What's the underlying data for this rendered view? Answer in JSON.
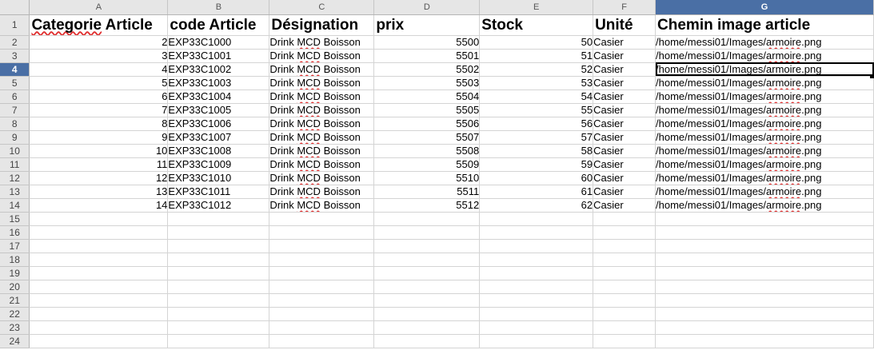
{
  "columns": [
    "A",
    "B",
    "C",
    "D",
    "E",
    "F",
    "G"
  ],
  "active_column": "G",
  "active_row": 4,
  "header_row": {
    "A": "Categorie Article",
    "B": "code Article",
    "C": "Désignation",
    "D": "prix",
    "E": "Stock",
    "F": "Unité",
    "G": "Chemin image  article"
  },
  "data_rows": [
    {
      "row": 2,
      "A": "2",
      "B": "EXP33C1000",
      "C": "Drink MCD Boisson",
      "D": "5500",
      "E": "50",
      "F": "Casier",
      "G": "/home/messi01/Images/armoire.png"
    },
    {
      "row": 3,
      "A": "3",
      "B": "EXP33C1001",
      "C": "Drink MCD Boisson",
      "D": "5501",
      "E": "51",
      "F": "Casier",
      "G": "/home/messi01/Images/armoire.png"
    },
    {
      "row": 4,
      "A": "4",
      "B": "EXP33C1002",
      "C": "Drink MCD Boisson",
      "D": "5502",
      "E": "52",
      "F": "Casier",
      "G": "/home/messi01/Images/armoire.png"
    },
    {
      "row": 5,
      "A": "5",
      "B": "EXP33C1003",
      "C": "Drink MCD Boisson",
      "D": "5503",
      "E": "53",
      "F": "Casier",
      "G": "/home/messi01/Images/armoire.png"
    },
    {
      "row": 6,
      "A": "6",
      "B": "EXP33C1004",
      "C": "Drink MCD Boisson",
      "D": "5504",
      "E": "54",
      "F": "Casier",
      "G": "/home/messi01/Images/armoire.png"
    },
    {
      "row": 7,
      "A": "7",
      "B": "EXP33C1005",
      "C": "Drink MCD Boisson",
      "D": "5505",
      "E": "55",
      "F": "Casier",
      "G": "/home/messi01/Images/armoire.png"
    },
    {
      "row": 8,
      "A": "8",
      "B": "EXP33C1006",
      "C": "Drink MCD Boisson",
      "D": "5506",
      "E": "56",
      "F": "Casier",
      "G": "/home/messi01/Images/armoire.png"
    },
    {
      "row": 9,
      "A": "9",
      "B": "EXP33C1007",
      "C": "Drink MCD Boisson",
      "D": "5507",
      "E": "57",
      "F": "Casier",
      "G": "/home/messi01/Images/armoire.png"
    },
    {
      "row": 10,
      "A": "10",
      "B": "EXP33C1008",
      "C": "Drink MCD Boisson",
      "D": "5508",
      "E": "58",
      "F": "Casier",
      "G": "/home/messi01/Images/armoire.png"
    },
    {
      "row": 11,
      "A": "11",
      "B": "EXP33C1009",
      "C": "Drink MCD Boisson",
      "D": "5509",
      "E": "59",
      "F": "Casier",
      "G": "/home/messi01/Images/armoire.png"
    },
    {
      "row": 12,
      "A": "12",
      "B": "EXP33C1010",
      "C": "Drink MCD Boisson",
      "D": "5510",
      "E": "60",
      "F": "Casier",
      "G": "/home/messi01/Images/armoire.png"
    },
    {
      "row": 13,
      "A": "13",
      "B": "EXP33C1011",
      "C": "Drink MCD Boisson",
      "D": "5511",
      "E": "61",
      "F": "Casier",
      "G": "/home/messi01/Images/armoire.png"
    },
    {
      "row": 14,
      "A": "14",
      "B": "EXP33C1012",
      "C": "Drink MCD Boisson",
      "D": "5512",
      "E": "62",
      "F": "Casier",
      "G": "/home/messi01/Images/armoire.png"
    }
  ],
  "empty_rows": [
    15,
    16,
    17,
    18,
    19,
    20,
    21,
    22,
    23,
    24
  ],
  "colors": {
    "header_bg": "#e6e6e6",
    "active_header_bg": "#4a6fa5",
    "gridline": "#d4d4d4",
    "spellcheck_underline": "#e03030"
  }
}
